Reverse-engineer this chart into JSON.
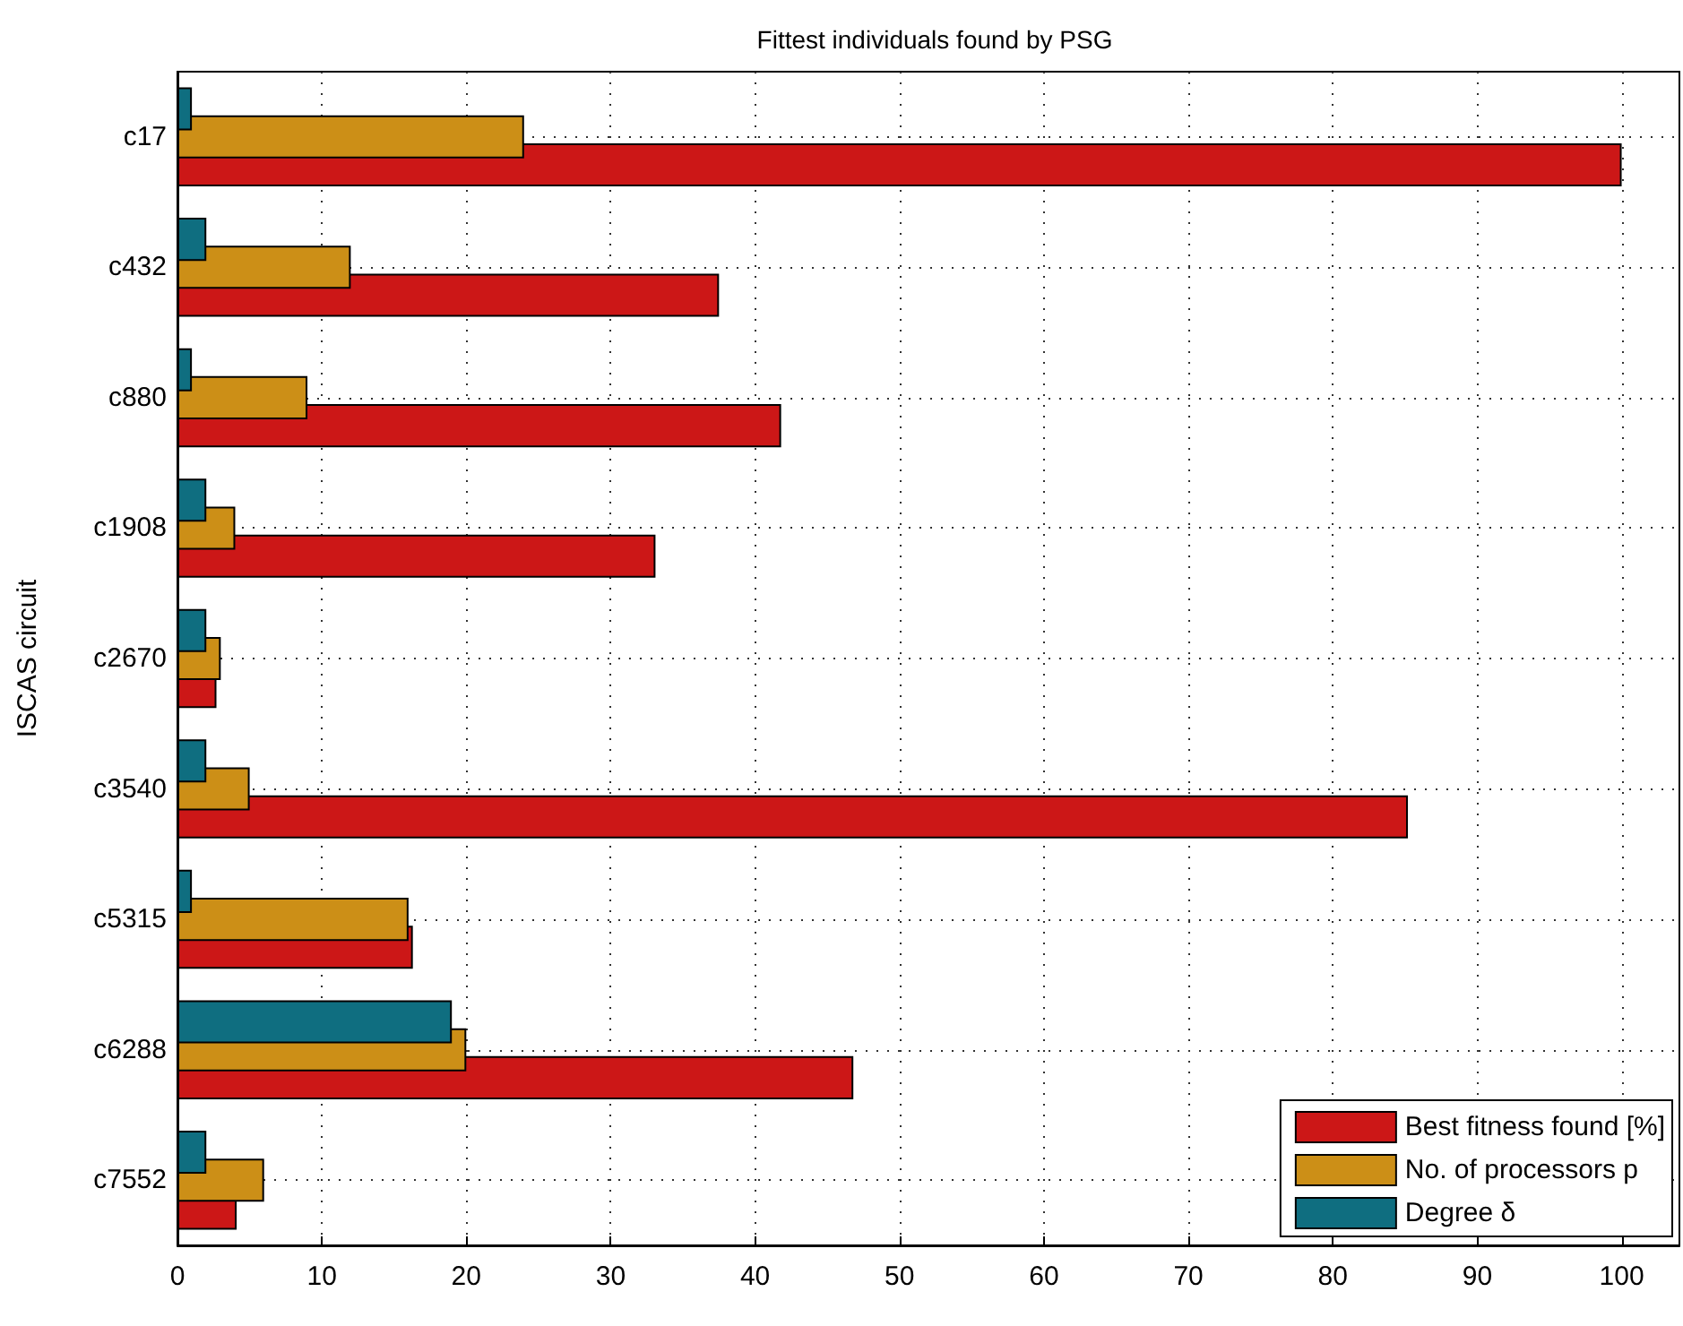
{
  "chart_data": {
    "type": "bar",
    "orientation": "horizontal",
    "title": "Fittest individuals found by PSG",
    "ylabel": "ISCAS circuit",
    "categories": [
      "c17",
      "c432",
      "c880",
      "c1908",
      "c2670",
      "c3540",
      "c5315",
      "c6288",
      "c7552"
    ],
    "series": [
      {
        "name": "Best fitness found [%]",
        "color": "#cc1717",
        "values": [
          100,
          37.5,
          41.8,
          33.1,
          2.7,
          85.2,
          16.3,
          46.8,
          4.1
        ]
      },
      {
        "name": "No. of processors p",
        "color": "#cc8f17",
        "values": [
          24,
          12,
          9,
          4,
          3,
          5,
          16,
          20,
          6
        ]
      },
      {
        "name": "Degree δ",
        "color": "#0f6e80",
        "values": [
          1,
          2,
          1,
          2,
          2,
          2,
          1,
          19,
          2
        ]
      }
    ],
    "xlim": [
      0,
      104
    ],
    "xticks": [
      0,
      10,
      20,
      30,
      40,
      50,
      60,
      70,
      80,
      90,
      100
    ],
    "grid": true,
    "legend": "bottom right"
  }
}
